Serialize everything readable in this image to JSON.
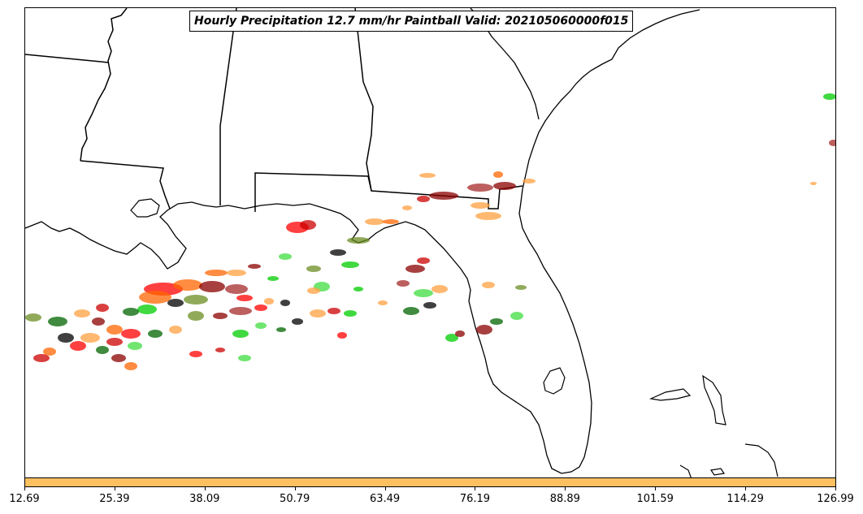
{
  "title": "Hourly Precipitation 12.7 mm/hr Paintball Valid: 202105060000f015",
  "colorbar": {
    "color": "#ffc060",
    "ticks": [
      "12.69",
      "25.39",
      "38.09",
      "50.79",
      "63.49",
      "76.19",
      "88.89",
      "101.59",
      "114.29",
      "126.99"
    ]
  },
  "map": {
    "region": "Southeastern United States and Gulf of Mexico",
    "background": "#ffffff",
    "boundary_color": "#000000"
  },
  "paintball_colors": [
    "#ff0000",
    "#cc0000",
    "#8b0000",
    "#ff6600",
    "#ffa040",
    "#00cc00",
    "#40dd40",
    "#006400",
    "#6b8e23",
    "#000000",
    "#a52a2a"
  ]
}
